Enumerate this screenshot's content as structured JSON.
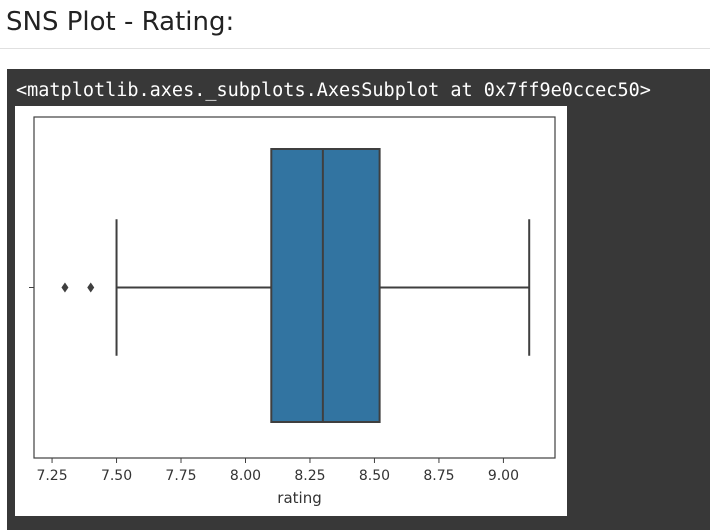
{
  "page": {
    "heading": "SNS Plot - Rating:"
  },
  "output": {
    "repr_text": "<matplotlib.axes._subplots.AxesSubplot at 0x7ff9e0ccec50>"
  },
  "chart_data": {
    "type": "box",
    "title": "",
    "xlabel": "rating",
    "ylabel": "",
    "orientation": "horizontal",
    "xlim": [
      7.18,
      9.2
    ],
    "xticks": [
      7.25,
      7.5,
      7.75,
      8.0,
      8.25,
      8.5,
      8.75,
      9.0
    ],
    "xtick_labels": [
      "7.25",
      "7.50",
      "7.75",
      "8.00",
      "8.25",
      "8.50",
      "8.75",
      "9.00"
    ],
    "box": {
      "whisker_low": 7.5,
      "q1": 8.1,
      "median": 8.3,
      "q3": 8.52,
      "whisker_high": 9.1,
      "outliers": [
        7.3,
        7.4
      ]
    },
    "colors": {
      "box_fill": "#3274a1",
      "lines": "#3f3f3f"
    }
  }
}
